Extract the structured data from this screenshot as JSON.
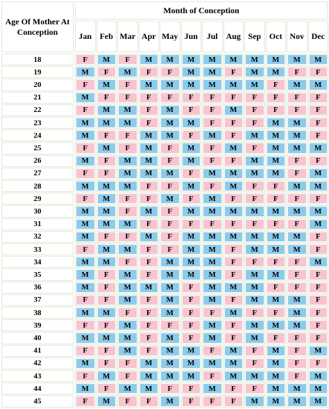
{
  "header": {
    "title": "Month of Conception",
    "row_label": "Age Of Mother At Conception"
  },
  "months": [
    "Jan",
    "Feb",
    "Mar",
    "Apr",
    "May",
    "Jun",
    "Jul",
    "Aug",
    "Sep",
    "Oct",
    "Nov",
    "Dec"
  ],
  "rows": [
    {
      "age": 18,
      "cells": [
        "F",
        "M",
        "F",
        "M",
        "M",
        "M",
        "M",
        "M",
        "M",
        "M",
        "M",
        "M"
      ]
    },
    {
      "age": 19,
      "cells": [
        "M",
        "F",
        "M",
        "F",
        "F",
        "M",
        "M",
        "F",
        "M",
        "M",
        "F",
        "F"
      ]
    },
    {
      "age": 20,
      "cells": [
        "F",
        "M",
        "F",
        "M",
        "M",
        "M",
        "M",
        "M",
        "M",
        "F",
        "M",
        "M"
      ]
    },
    {
      "age": 21,
      "cells": [
        "M",
        "F",
        "F",
        "F",
        "F",
        "F",
        "F",
        "F",
        "F",
        "F",
        "F",
        "F"
      ]
    },
    {
      "age": 22,
      "cells": [
        "F",
        "M",
        "M",
        "F",
        "M",
        "F",
        "F",
        "M",
        "F",
        "F",
        "F",
        "F"
      ]
    },
    {
      "age": 23,
      "cells": [
        "M",
        "M",
        "M",
        "F",
        "M",
        "M",
        "F",
        "F",
        "F",
        "M",
        "M",
        "F"
      ]
    },
    {
      "age": 24,
      "cells": [
        "M",
        "F",
        "F",
        "M",
        "M",
        "F",
        "M",
        "F",
        "M",
        "M",
        "M",
        "F"
      ]
    },
    {
      "age": 25,
      "cells": [
        "F",
        "M",
        "F",
        "M",
        "F",
        "M",
        "F",
        "M",
        "F",
        "M",
        "M",
        "M"
      ]
    },
    {
      "age": 26,
      "cells": [
        "M",
        "F",
        "M",
        "M",
        "F",
        "M",
        "F",
        "F",
        "M",
        "M",
        "F",
        "F"
      ]
    },
    {
      "age": 27,
      "cells": [
        "F",
        "F",
        "M",
        "M",
        "M",
        "F",
        "M",
        "M",
        "M",
        "M",
        "F",
        "M"
      ]
    },
    {
      "age": 28,
      "cells": [
        "M",
        "M",
        "M",
        "F",
        "F",
        "M",
        "F",
        "M",
        "F",
        "F",
        "M",
        "M"
      ]
    },
    {
      "age": 29,
      "cells": [
        "F",
        "M",
        "F",
        "F",
        "M",
        "F",
        "M",
        "F",
        "F",
        "F",
        "F",
        "F"
      ]
    },
    {
      "age": 30,
      "cells": [
        "M",
        "M",
        "F",
        "M",
        "F",
        "M",
        "M",
        "M",
        "M",
        "M",
        "M",
        "M"
      ]
    },
    {
      "age": 31,
      "cells": [
        "M",
        "M",
        "M",
        "F",
        "F",
        "F",
        "F",
        "F",
        "F",
        "F",
        "F",
        "M"
      ]
    },
    {
      "age": 32,
      "cells": [
        "M",
        "F",
        "F",
        "M",
        "F",
        "M",
        "M",
        "M",
        "M",
        "M",
        "M",
        "F"
      ]
    },
    {
      "age": 33,
      "cells": [
        "F",
        "M",
        "M",
        "F",
        "F",
        "M",
        "M",
        "F",
        "M",
        "M",
        "M",
        "F"
      ]
    },
    {
      "age": 34,
      "cells": [
        "M",
        "M",
        "F",
        "F",
        "M",
        "M",
        "M",
        "F",
        "F",
        "F",
        "F",
        "M"
      ]
    },
    {
      "age": 35,
      "cells": [
        "M",
        "F",
        "M",
        "F",
        "M",
        "M",
        "M",
        "F",
        "M",
        "M",
        "F",
        "F"
      ]
    },
    {
      "age": 36,
      "cells": [
        "M",
        "F",
        "M",
        "M",
        "M",
        "F",
        "M",
        "M",
        "M",
        "F",
        "F",
        "F"
      ]
    },
    {
      "age": 37,
      "cells": [
        "F",
        "F",
        "M",
        "F",
        "M",
        "F",
        "M",
        "F",
        "M",
        "M",
        "M",
        "F"
      ]
    },
    {
      "age": 38,
      "cells": [
        "M",
        "M",
        "F",
        "F",
        "M",
        "F",
        "F",
        "M",
        "F",
        "F",
        "M",
        "F"
      ]
    },
    {
      "age": 39,
      "cells": [
        "F",
        "F",
        "M",
        "F",
        "F",
        "F",
        "M",
        "F",
        "M",
        "M",
        "M",
        "F"
      ]
    },
    {
      "age": 40,
      "cells": [
        "M",
        "M",
        "M",
        "F",
        "M",
        "F",
        "M",
        "F",
        "M",
        "F",
        "F",
        "F"
      ]
    },
    {
      "age": 41,
      "cells": [
        "F",
        "F",
        "M",
        "F",
        "M",
        "M",
        "F",
        "M",
        "F",
        "M",
        "F",
        "M"
      ]
    },
    {
      "age": 42,
      "cells": [
        "M",
        "F",
        "F",
        "M",
        "M",
        "M",
        "M",
        "M",
        "F",
        "M",
        "F",
        "F"
      ]
    },
    {
      "age": 43,
      "cells": [
        "F",
        "M",
        "F",
        "M",
        "M",
        "M",
        "F",
        "M",
        "M",
        "M",
        "F",
        "M"
      ]
    },
    {
      "age": 44,
      "cells": [
        "M",
        "F",
        "M",
        "M",
        "F",
        "F",
        "M",
        "F",
        "F",
        "M",
        "M",
        "M"
      ]
    },
    {
      "age": 45,
      "cells": [
        "F",
        "M",
        "F",
        "F",
        "M",
        "F",
        "F",
        "F",
        "M",
        "M",
        "M",
        "M"
      ]
    }
  ]
}
